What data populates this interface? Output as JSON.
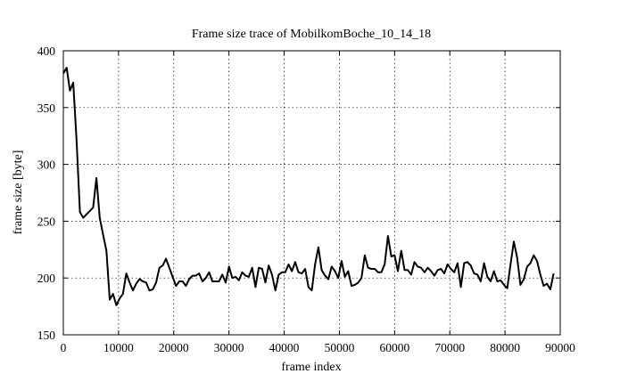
{
  "chart_data": {
    "type": "line",
    "title": "Frame size trace of MobilkomBoche_10_14_18",
    "xlabel": "frame index",
    "ylabel": "frame size [byte]",
    "xlim": [
      0,
      90000
    ],
    "ylim": [
      150,
      400
    ],
    "xticks": [
      0,
      10000,
      20000,
      30000,
      40000,
      50000,
      60000,
      70000,
      80000,
      90000
    ],
    "yticks": [
      150,
      200,
      250,
      300,
      350,
      400
    ],
    "grid": true,
    "series": [
      {
        "color": "#000000",
        "points": [
          [
            0,
            380
          ],
          [
            600,
            385
          ],
          [
            1200,
            365
          ],
          [
            1800,
            372
          ],
          [
            2400,
            320
          ],
          [
            3000,
            258
          ],
          [
            3600,
            253
          ],
          [
            4200,
            256
          ],
          [
            4800,
            259
          ],
          [
            5400,
            262
          ],
          [
            6000,
            288
          ],
          [
            6600,
            253
          ],
          [
            7200,
            238
          ],
          [
            7800,
            224
          ],
          [
            8400,
            181
          ],
          [
            9000,
            186
          ],
          [
            9600,
            176
          ],
          [
            10200,
            182
          ],
          [
            10800,
            186
          ],
          [
            11400,
            204
          ],
          [
            12000,
            196
          ],
          [
            12600,
            189
          ],
          [
            13200,
            195
          ],
          [
            13800,
            199
          ],
          [
            14400,
            197
          ],
          [
            15000,
            196
          ],
          [
            15600,
            189
          ],
          [
            16200,
            190
          ],
          [
            16800,
            196
          ],
          [
            17400,
            209
          ],
          [
            18000,
            211
          ],
          [
            18600,
            217
          ],
          [
            19200,
            209
          ],
          [
            19800,
            201
          ],
          [
            20400,
            193
          ],
          [
            21000,
            197
          ],
          [
            21600,
            197
          ],
          [
            22200,
            193
          ],
          [
            22800,
            199
          ],
          [
            23400,
            202
          ],
          [
            24000,
            202
          ],
          [
            24600,
            204
          ],
          [
            25200,
            197
          ],
          [
            25800,
            200
          ],
          [
            26400,
            205
          ],
          [
            27000,
            197
          ],
          [
            27600,
            197
          ],
          [
            28200,
            197
          ],
          [
            28800,
            203
          ],
          [
            29400,
            196
          ],
          [
            30000,
            210
          ],
          [
            30600,
            200
          ],
          [
            31200,
            201
          ],
          [
            31800,
            198
          ],
          [
            32400,
            205
          ],
          [
            33000,
            202
          ],
          [
            33600,
            201
          ],
          [
            34200,
            209
          ],
          [
            34800,
            192
          ],
          [
            35400,
            209
          ],
          [
            36000,
            208
          ],
          [
            36600,
            196
          ],
          [
            37200,
            211
          ],
          [
            37800,
            203
          ],
          [
            38400,
            189
          ],
          [
            39000,
            203
          ],
          [
            39600,
            205
          ],
          [
            40200,
            205
          ],
          [
            40800,
            212
          ],
          [
            41400,
            206
          ],
          [
            42000,
            214
          ],
          [
            42600,
            205
          ],
          [
            43200,
            204
          ],
          [
            43800,
            208
          ],
          [
            44400,
            192
          ],
          [
            45000,
            189
          ],
          [
            45600,
            212
          ],
          [
            46200,
            227
          ],
          [
            46800,
            207
          ],
          [
            47400,
            202
          ],
          [
            48000,
            199
          ],
          [
            48600,
            210
          ],
          [
            49200,
            206
          ],
          [
            49800,
            200
          ],
          [
            50400,
            215
          ],
          [
            51000,
            201
          ],
          [
            51600,
            206
          ],
          [
            52200,
            193
          ],
          [
            52800,
            194
          ],
          [
            53400,
            196
          ],
          [
            54000,
            200
          ],
          [
            54600,
            220
          ],
          [
            55200,
            209
          ],
          [
            55800,
            208
          ],
          [
            56400,
            208
          ],
          [
            57000,
            205
          ],
          [
            57600,
            205
          ],
          [
            58200,
            212
          ],
          [
            58800,
            237
          ],
          [
            59400,
            219
          ],
          [
            60000,
            220
          ],
          [
            60600,
            206
          ],
          [
            61200,
            224
          ],
          [
            61800,
            207
          ],
          [
            62400,
            207
          ],
          [
            63000,
            203
          ],
          [
            63600,
            214
          ],
          [
            64200,
            210
          ],
          [
            64800,
            209
          ],
          [
            65400,
            205
          ],
          [
            66000,
            209
          ],
          [
            66600,
            206
          ],
          [
            67200,
            202
          ],
          [
            67800,
            207
          ],
          [
            68400,
            208
          ],
          [
            69000,
            204
          ],
          [
            69600,
            212
          ],
          [
            70200,
            208
          ],
          [
            70800,
            205
          ],
          [
            71400,
            213
          ],
          [
            72000,
            192
          ],
          [
            72600,
            213
          ],
          [
            73200,
            214
          ],
          [
            73800,
            211
          ],
          [
            74400,
            204
          ],
          [
            75000,
            203
          ],
          [
            75600,
            197
          ],
          [
            76200,
            213
          ],
          [
            76800,
            201
          ],
          [
            77400,
            197
          ],
          [
            78000,
            206
          ],
          [
            78600,
            197
          ],
          [
            79200,
            198
          ],
          [
            79800,
            194
          ],
          [
            80400,
            191
          ],
          [
            81000,
            212
          ],
          [
            81600,
            232
          ],
          [
            82200,
            218
          ],
          [
            82800,
            194
          ],
          [
            83400,
            199
          ],
          [
            84000,
            210
          ],
          [
            84600,
            213
          ],
          [
            85200,
            220
          ],
          [
            85800,
            215
          ],
          [
            86400,
            203
          ],
          [
            87000,
            193
          ],
          [
            87600,
            195
          ],
          [
            88200,
            190
          ],
          [
            88800,
            204
          ]
        ]
      }
    ]
  }
}
